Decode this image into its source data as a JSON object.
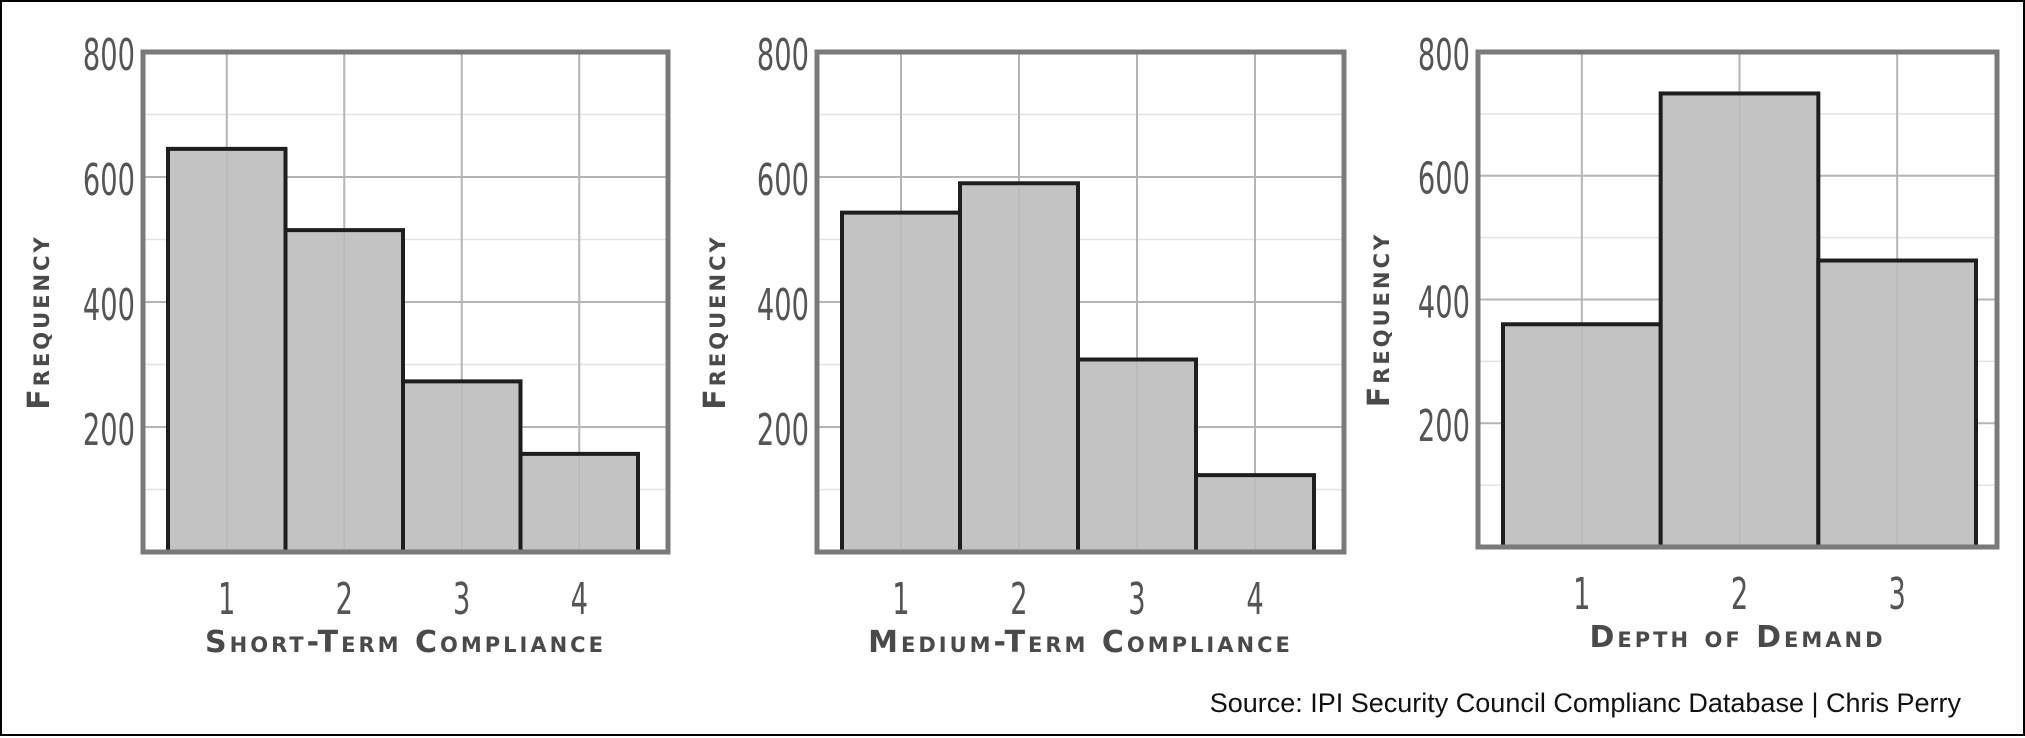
{
  "chart_data": [
    {
      "type": "bar",
      "categories": [
        "1",
        "2",
        "3",
        "4"
      ],
      "values": [
        645,
        515,
        273,
        157
      ],
      "title": "",
      "xlabel": "Short-Term Compliance",
      "ylabel": "Frequency",
      "yticks": [
        "200",
        "400",
        "600",
        "800"
      ],
      "ylim": [
        0,
        800
      ],
      "grid": true
    },
    {
      "type": "bar",
      "categories": [
        "1",
        "2",
        "3",
        "4"
      ],
      "values": [
        543,
        590,
        308,
        123
      ],
      "title": "",
      "xlabel": "Medium-Term Compliance",
      "ylabel": "Frequency",
      "yticks": [
        "200",
        "400",
        "600",
        "800"
      ],
      "ylim": [
        0,
        800
      ],
      "grid": true
    },
    {
      "type": "bar",
      "categories": [
        "1",
        "2",
        "3"
      ],
      "values": [
        360,
        733,
        463
      ],
      "title": "",
      "xlabel": "Depth of Demand",
      "ylabel": "Frequency",
      "yticks": [
        "200",
        "400",
        "600",
        "800"
      ],
      "ylim": [
        0,
        800
      ],
      "grid": true
    }
  ],
  "colors": {
    "bar_fill": "#c4c3c4",
    "bar_stroke": "#1e1e1e",
    "panel_border": "#7a7a7a",
    "grid_major": "#b5b5b5",
    "grid_minor": "#e3e3e3"
  },
  "source": "Source: IPI Security Council Complianc Database | Chris Perry"
}
